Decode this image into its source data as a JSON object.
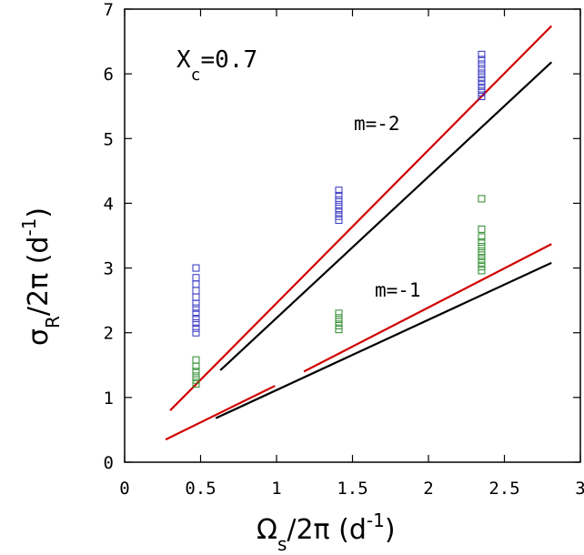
{
  "chart_data": {
    "type": "scatter",
    "xlim": [
      0,
      3
    ],
    "ylim": [
      0,
      7
    ],
    "xticks": [
      "0",
      "0.5",
      "1",
      "1.5",
      "2",
      "2.5",
      "3"
    ],
    "yticks": [
      "0",
      "1",
      "2",
      "3",
      "4",
      "5",
      "6",
      "7"
    ],
    "xlabel": {
      "main": "Ω",
      "sub": "s",
      "rest": "/2π (d",
      "sup": "-1",
      "close": ")"
    },
    "ylabel": {
      "main": "σ",
      "sub": "R",
      "rest": "/2π (d",
      "sup": "-1",
      "close": ")"
    },
    "annotations": {
      "xc": {
        "main": "X",
        "sub": "c",
        "rest": "=0.7"
      },
      "m_minus_2": "m=-2",
      "m_minus_1": "m=-1"
    },
    "colors": {
      "red": "#d00000",
      "black": "#000000",
      "blue": "#3030c0",
      "green": "#2a8a2a"
    },
    "lines": [
      {
        "color": "red",
        "points": [
          [
            0.3,
            0.8
          ],
          [
            2.81,
            6.74
          ]
        ]
      },
      {
        "color": "black",
        "points": [
          [
            0.63,
            1.42
          ],
          [
            2.81,
            6.18
          ]
        ]
      },
      {
        "color": "red",
        "points": [
          [
            0.27,
            0.35
          ],
          [
            0.99,
            1.18
          ]
        ]
      },
      {
        "color": "red",
        "points": [
          [
            1.18,
            1.4
          ],
          [
            2.81,
            3.37
          ]
        ]
      },
      {
        "color": "black",
        "points": [
          [
            0.6,
            0.68
          ],
          [
            2.81,
            3.08
          ]
        ]
      }
    ],
    "series": [
      {
        "color": "blue",
        "points": [
          [
            0.47,
            3.0
          ],
          [
            0.47,
            2.85
          ],
          [
            0.47,
            2.75
          ],
          [
            0.47,
            2.65
          ],
          [
            0.47,
            2.55
          ],
          [
            0.47,
            2.45
          ],
          [
            0.47,
            2.38
          ],
          [
            0.47,
            2.3
          ],
          [
            0.47,
            2.22
          ],
          [
            0.47,
            2.15
          ],
          [
            0.47,
            2.07
          ],
          [
            0.47,
            2.0
          ],
          [
            1.41,
            4.2
          ],
          [
            1.41,
            4.12
          ],
          [
            1.41,
            4.05
          ],
          [
            1.41,
            3.98
          ],
          [
            1.41,
            3.92
          ],
          [
            1.41,
            3.86
          ],
          [
            1.41,
            3.8
          ],
          [
            1.41,
            3.74
          ],
          [
            2.35,
            6.3
          ],
          [
            2.35,
            6.22
          ],
          [
            2.35,
            6.15
          ],
          [
            2.35,
            6.08
          ],
          [
            2.35,
            6.01
          ],
          [
            2.35,
            5.95
          ],
          [
            2.35,
            5.89
          ],
          [
            2.35,
            5.83
          ],
          [
            2.35,
            5.77
          ],
          [
            2.35,
            5.71
          ],
          [
            2.35,
            5.65
          ]
        ]
      },
      {
        "color": "green",
        "points": [
          [
            0.47,
            1.58
          ],
          [
            0.47,
            1.48
          ],
          [
            0.47,
            1.4
          ],
          [
            0.47,
            1.33
          ],
          [
            0.47,
            1.27
          ],
          [
            0.47,
            1.21
          ],
          [
            1.41,
            2.3
          ],
          [
            1.41,
            2.23
          ],
          [
            1.41,
            2.17
          ],
          [
            1.41,
            2.11
          ],
          [
            1.41,
            2.05
          ],
          [
            2.35,
            4.07
          ],
          [
            2.35,
            3.6
          ],
          [
            2.35,
            3.48
          ],
          [
            2.35,
            3.4
          ],
          [
            2.35,
            3.33
          ],
          [
            2.35,
            3.26
          ],
          [
            2.35,
            3.2
          ],
          [
            2.35,
            3.14
          ],
          [
            2.35,
            3.08
          ],
          [
            2.35,
            3.02
          ],
          [
            2.35,
            2.96
          ]
        ]
      }
    ]
  }
}
